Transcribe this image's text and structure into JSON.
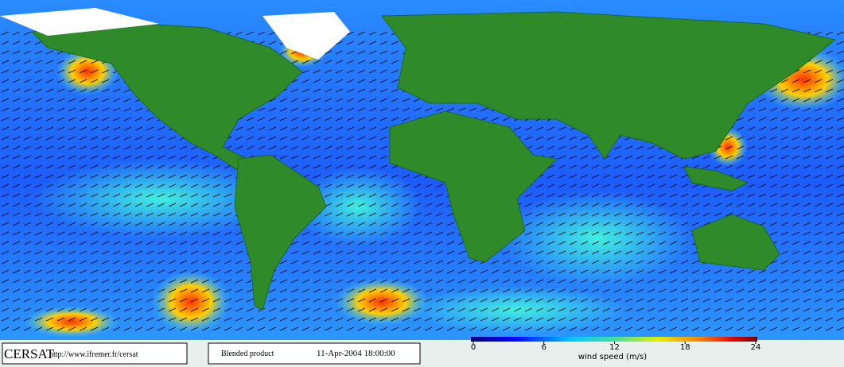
{
  "footer": {
    "logo": "CERSAT",
    "url": "http://www.ifremer.fr/cersat",
    "product": "Blended product",
    "date": "11-Apr-2004 18:00:00"
  },
  "colorbar": {
    "label": "wind speed (m/s)",
    "range": [
      0,
      24
    ],
    "ticks": [
      0,
      6,
      12,
      18,
      24
    ]
  }
}
